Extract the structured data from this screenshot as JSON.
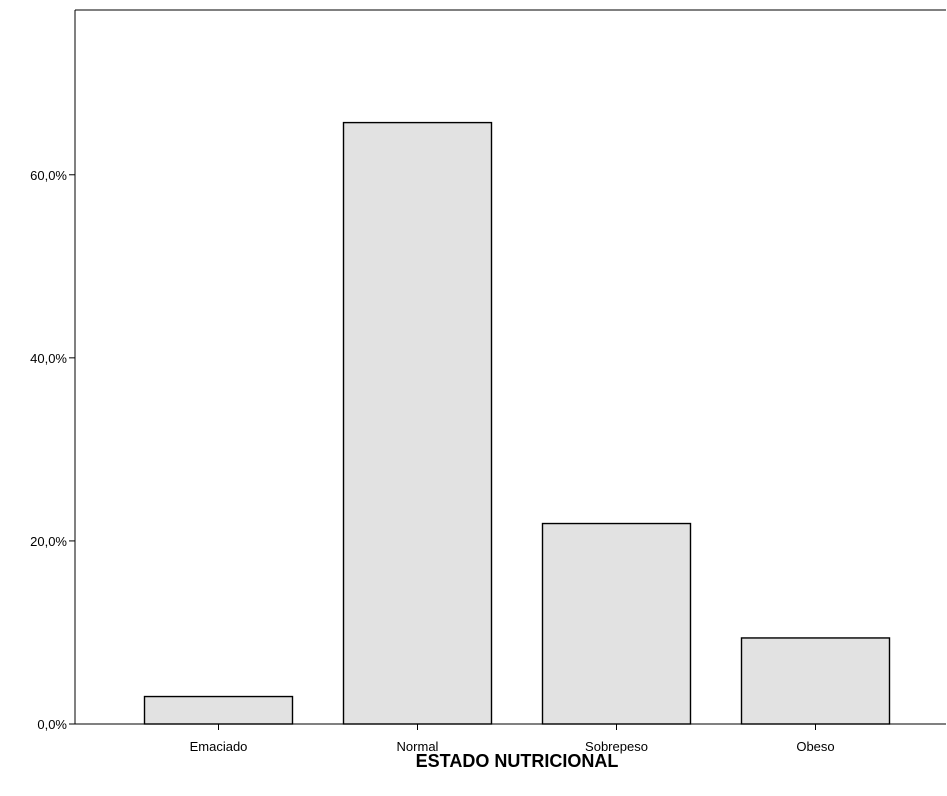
{
  "chart_data": {
    "type": "bar",
    "categories": [
      "Emaciado",
      "Normal",
      "Sobrepeso",
      "Obeso"
    ],
    "values": [
      3.0,
      65.7,
      21.9,
      9.4
    ],
    "title": "",
    "xlabel": "ESTADO NUTRICIONAL",
    "ylabel": "",
    "ylim": [
      0,
      78
    ],
    "yticks": [
      0,
      20,
      40,
      60
    ],
    "ytick_labels": [
      "0,0%",
      "20,0%",
      "40,0%",
      "60,0%"
    ],
    "grid": false,
    "legend": "none",
    "bar_fill": "#e2e2e2",
    "bar_stroke": "#000000"
  }
}
